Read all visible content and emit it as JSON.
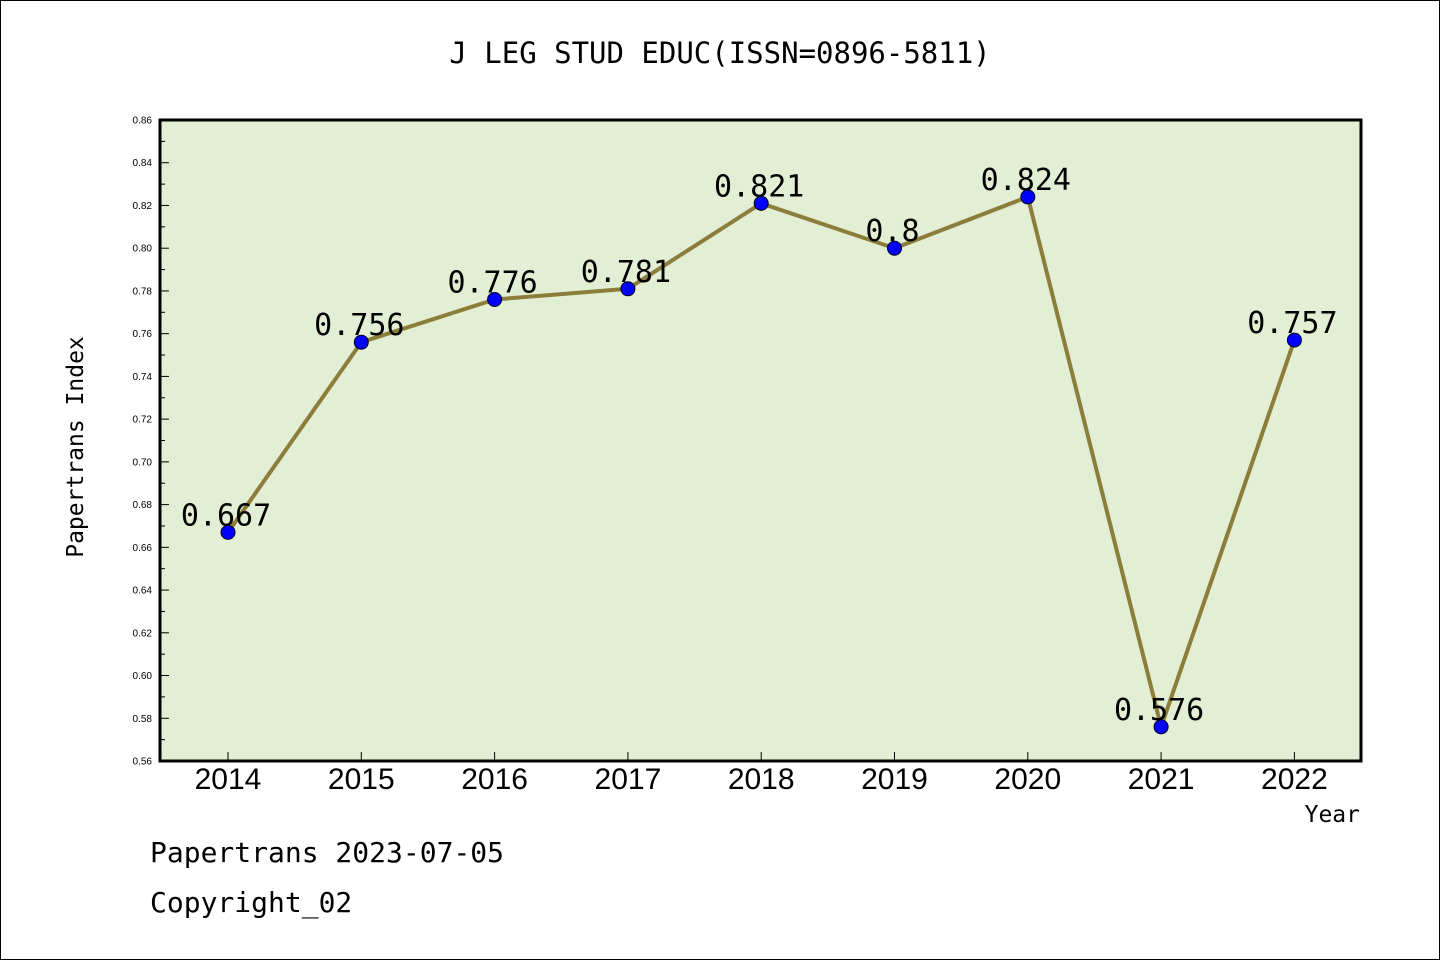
{
  "chart_data": {
    "type": "line",
    "title": "J LEG STUD EDUC(ISSN=0896-5811)",
    "xlabel": "Year",
    "ylabel": "Papertrans Index",
    "categories": [
      "2014",
      "2015",
      "2016",
      "2017",
      "2018",
      "2019",
      "2020",
      "2021",
      "2022"
    ],
    "series": [
      {
        "values": [
          0.667,
          0.756,
          0.776,
          0.781,
          0.821,
          0.8,
          0.824,
          0.576,
          0.757
        ]
      }
    ],
    "data_labels": [
      "0.667",
      "0.756",
      "0.776",
      "0.781",
      "0.821",
      "0.8",
      "0.824",
      "0.576",
      "0.757"
    ],
    "ylim": [
      0.56,
      0.86
    ],
    "yticks": [
      "0.56",
      "0.58",
      "0.60",
      "0.62",
      "0.64",
      "0.66",
      "0.68",
      "0.70",
      "0.72",
      "0.74",
      "0.76",
      "0.78",
      "0.80",
      "0.82",
      "0.84",
      "0.86"
    ],
    "grid": false,
    "legend": "none",
    "colors": {
      "plot_background": "#e2efd5",
      "line": "#8c7d3a",
      "marker": "#0000ff"
    }
  },
  "footer": {
    "date_line": "Papertrans 2023-07-05",
    "copyright_line": "Copyright_02"
  }
}
